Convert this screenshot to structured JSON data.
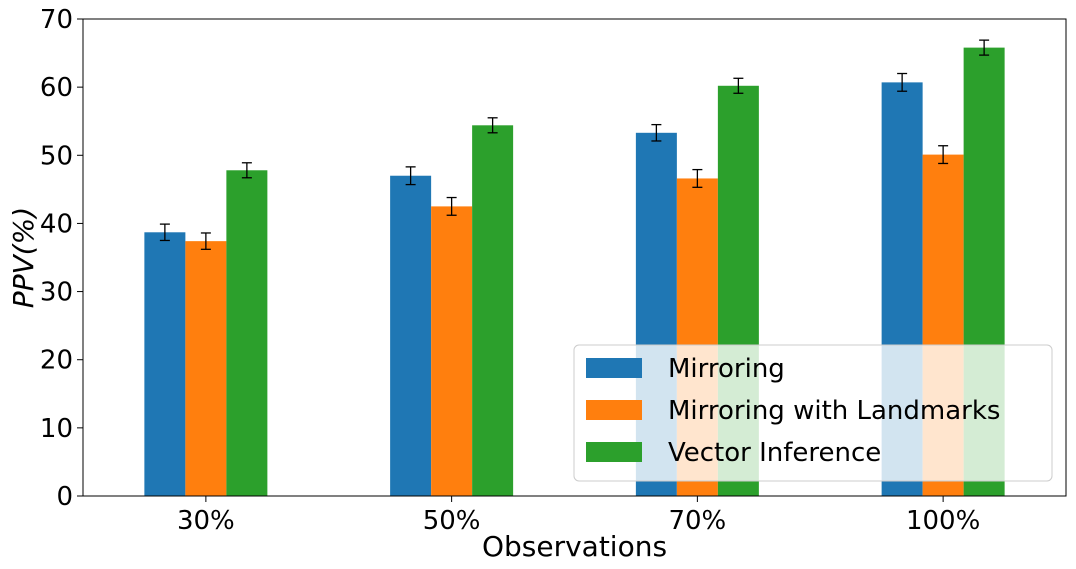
{
  "chart_data": {
    "type": "bar",
    "title": "",
    "xlabel": "Observations",
    "ylabel": "PPV(%)",
    "categories": [
      "30%",
      "50%",
      "70%",
      "100%"
    ],
    "ylim": [
      0,
      70
    ],
    "yticks": [
      0,
      10,
      20,
      30,
      40,
      50,
      60,
      70
    ],
    "grid": false,
    "legend_position": "lower-right",
    "series": [
      {
        "name": "Mirroring",
        "color": "#1f77b4",
        "values": [
          38.7,
          47.0,
          53.3,
          60.7
        ],
        "errors": [
          1.2,
          1.3,
          1.2,
          1.3
        ]
      },
      {
        "name": "Mirroring with Landmarks",
        "color": "#ff7f0e",
        "values": [
          37.4,
          42.5,
          46.6,
          50.1
        ],
        "errors": [
          1.2,
          1.3,
          1.3,
          1.3
        ]
      },
      {
        "name": "Vector Inference",
        "color": "#2ca02c",
        "values": [
          47.8,
          54.4,
          60.2,
          65.8
        ],
        "errors": [
          1.1,
          1.1,
          1.1,
          1.1
        ]
      }
    ]
  }
}
